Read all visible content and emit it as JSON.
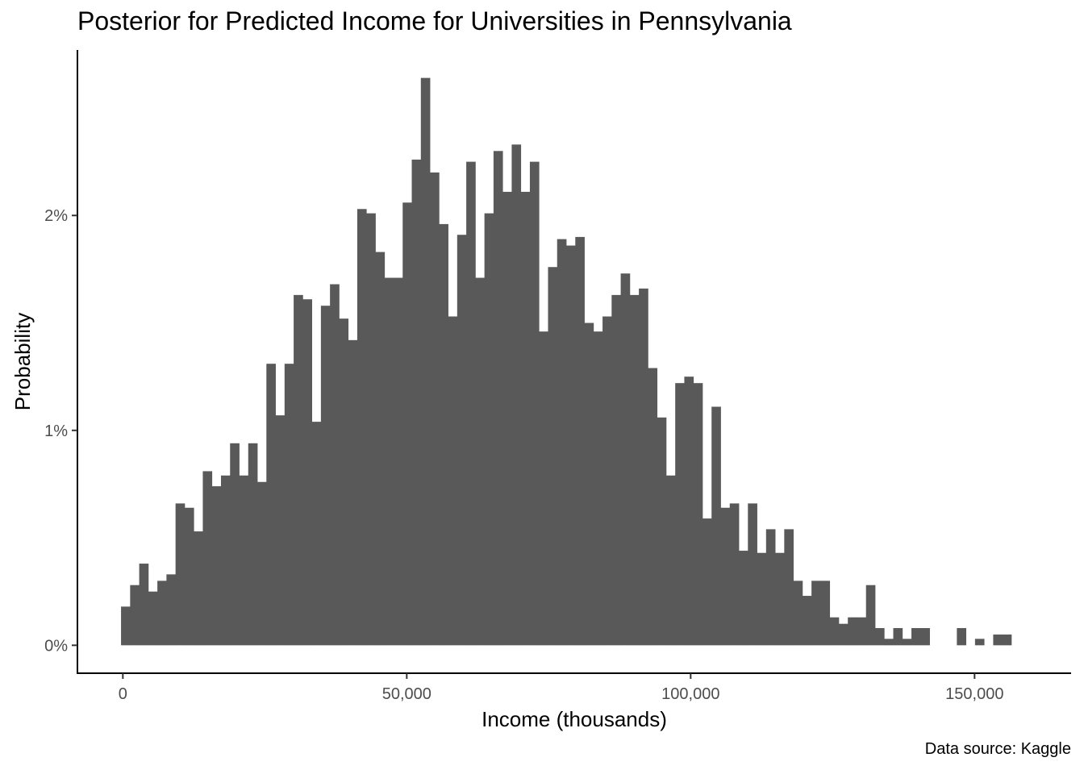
{
  "chart_data": {
    "type": "bar",
    "title": "Posterior for Predicted Income for Universities in Pennsylvania",
    "xlabel": "Income (thousands)",
    "ylabel": "Probability",
    "caption": "Data source: Kaggle",
    "xlim": [
      -8000,
      167000
    ],
    "ylim": [
      -0.0013,
      0.0277
    ],
    "bin_width": 1600,
    "x_ticks": [
      {
        "value": 0,
        "label": "0"
      },
      {
        "value": 50000,
        "label": "50,000"
      },
      {
        "value": 100000,
        "label": "100,000"
      },
      {
        "value": 150000,
        "label": "150,000"
      }
    ],
    "y_ticks": [
      {
        "value": 0,
        "label": "0%"
      },
      {
        "value": 0.01,
        "label": "1%"
      },
      {
        "value": 0.02,
        "label": "2%"
      }
    ],
    "grid": false,
    "legend": "none",
    "bar_color": "#595959",
    "series": [
      {
        "x": [
          -320,
          1280,
          2880,
          4480,
          6080,
          7680,
          9280,
          10880,
          12480,
          14080,
          15680,
          17280,
          18880,
          20480,
          22080,
          23680,
          25280,
          26880,
          28480,
          30080,
          31680,
          33280,
          34880,
          36480,
          38080,
          39680,
          41280,
          42880,
          44480,
          46080,
          47680,
          49280,
          50880,
          52480,
          54080,
          55680,
          57280,
          58880,
          60480,
          62080,
          63680,
          65280,
          66880,
          68480,
          70080,
          71680,
          73280,
          74880,
          76480,
          78080,
          79680,
          81280,
          82880,
          84480,
          86080,
          87680,
          89280,
          90880,
          92480,
          94080,
          95680,
          97280,
          98880,
          100480,
          102080,
          103680,
          105280,
          106880,
          108480,
          110080,
          111680,
          113280,
          114880,
          116480,
          118080,
          119680,
          121280,
          122880,
          124480,
          126080,
          127680,
          129280,
          130880,
          132480,
          134080,
          135680,
          137280,
          138880,
          140480,
          142080,
          143680,
          145280,
          146880,
          148480,
          150080,
          151680,
          153280,
          154880,
          156480
        ],
        "values": [
          0.0018,
          0.0028,
          0.0038,
          0.0025,
          0.003,
          0.0033,
          0.0066,
          0.0064,
          0.0053,
          0.0081,
          0.0074,
          0.0079,
          0.0094,
          0.0079,
          0.0094,
          0.0076,
          0.0131,
          0.0107,
          0.0131,
          0.0163,
          0.0161,
          0.0104,
          0.0158,
          0.0168,
          0.0152,
          0.0142,
          0.0203,
          0.0201,
          0.0183,
          0.0171,
          0.0171,
          0.0206,
          0.0226,
          0.0264,
          0.022,
          0.0196,
          0.0153,
          0.0191,
          0.0225,
          0.0171,
          0.0201,
          0.023,
          0.0211,
          0.0233,
          0.0211,
          0.0225,
          0.0146,
          0.0176,
          0.0189,
          0.0186,
          0.019,
          0.015,
          0.0146,
          0.0153,
          0.0163,
          0.0173,
          0.0163,
          0.0166,
          0.0129,
          0.0106,
          0.0079,
          0.0122,
          0.0125,
          0.0122,
          0.0059,
          0.0111,
          0.0064,
          0.0066,
          0.0044,
          0.0066,
          0.0043,
          0.0054,
          0.0043,
          0.0054,
          0.003,
          0.0023,
          0.003,
          0.003,
          0.0013,
          0.001,
          0.0013,
          0.0013,
          0.0028,
          0.0008,
          0.0003,
          0.0008,
          0.0003,
          0.0008,
          0.0008,
          0,
          0,
          0,
          0.0008,
          0,
          0.0003,
          0,
          0.0005,
          0.0005,
          0
        ]
      }
    ]
  }
}
